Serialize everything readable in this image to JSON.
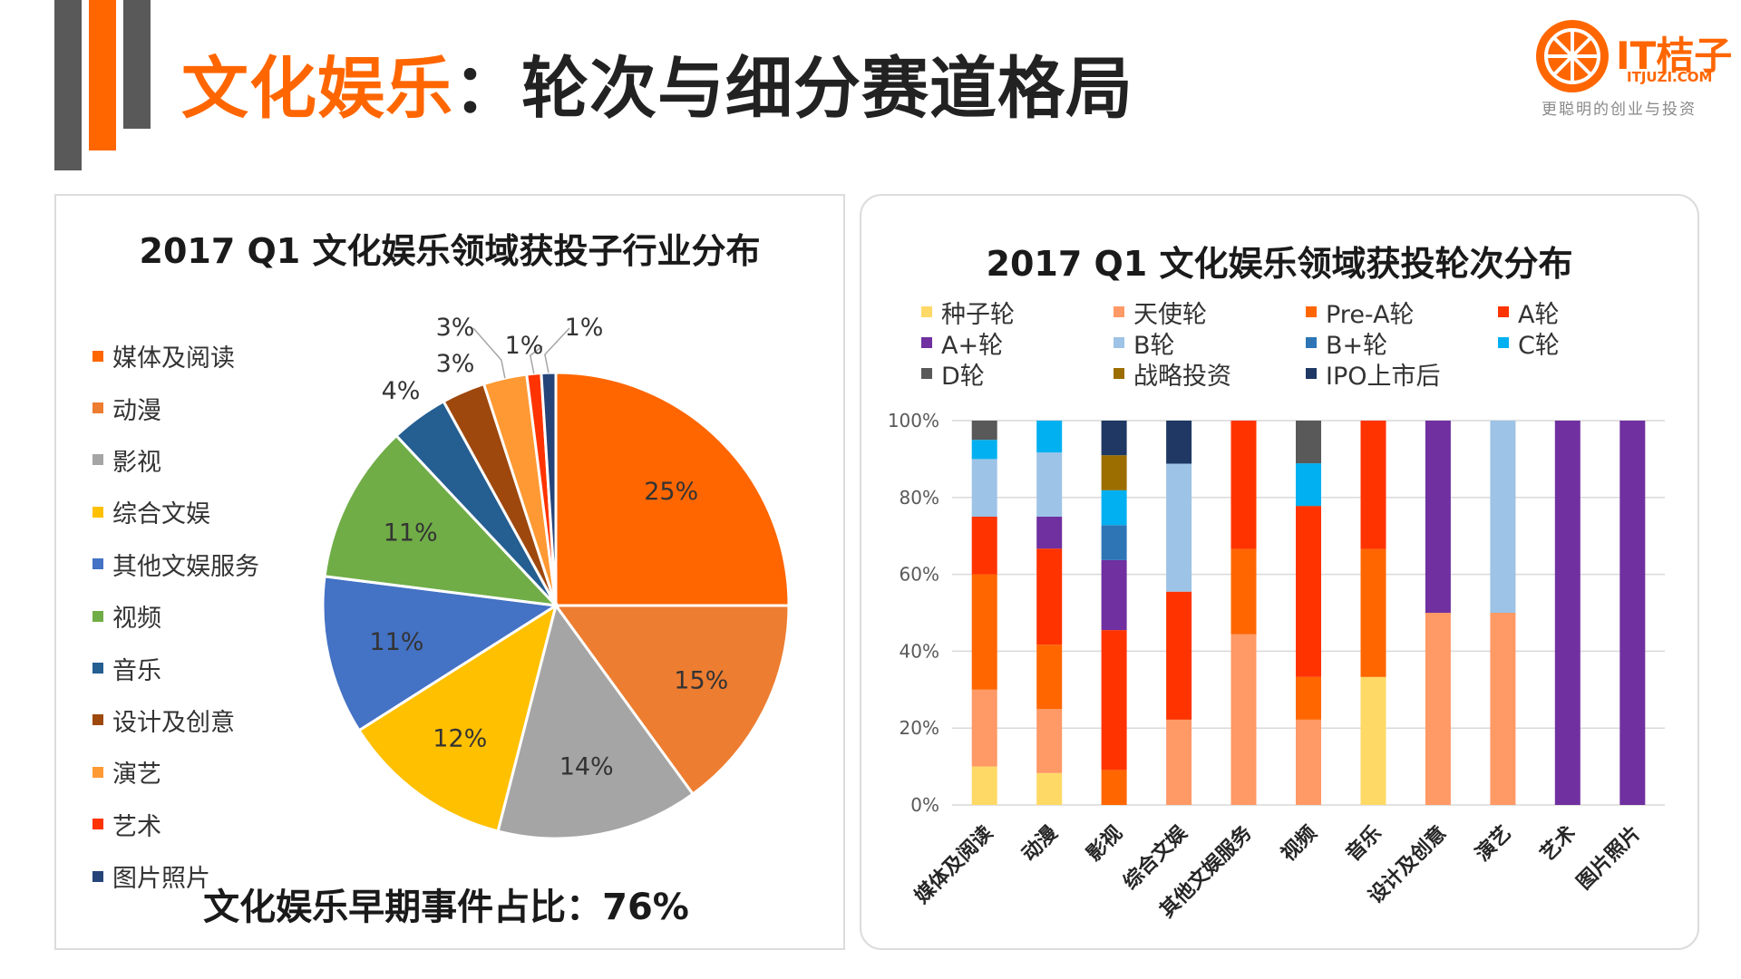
{
  "header": {
    "title_accent": "文化娱乐",
    "title_rest": "：轮次与细分赛道格局"
  },
  "logo": {
    "name": "IT桔子",
    "url": "ITJUZI.COM",
    "slogan": "更聪明的创业与投资"
  },
  "colors": {
    "accent": "#ff6600",
    "deco_gray": "#595959",
    "deco_orange": "#ff6600"
  },
  "chart_data": [
    {
      "type": "pie",
      "title": "2017 Q1 文化娱乐领域获投子行业分布",
      "categories": [
        "媒体及阅读",
        "动漫",
        "影视",
        "综合文娱",
        "其他文娱服务",
        "视频",
        "音乐",
        "设计及创意",
        "演艺",
        "艺术",
        "图片照片"
      ],
      "values": [
        25,
        15,
        14,
        12,
        11,
        11,
        4,
        3,
        3,
        1,
        1
      ],
      "labels": [
        "25%",
        "15%",
        "14%",
        "12%",
        "11%",
        "11%",
        "4%",
        "3%",
        "3%",
        "1%",
        "1%"
      ],
      "colors": [
        "#ff6600",
        "#ed7d31",
        "#a5a5a5",
        "#ffc000",
        "#4472c4",
        "#70ad47",
        "#255e91",
        "#9e480e",
        "#ff9933",
        "#ff3300",
        "#264478"
      ],
      "legend_position": "left"
    },
    {
      "type": "bar",
      "stacked": true,
      "title": "2017 Q1 文化娱乐领域获投轮次分布",
      "categories": [
        "媒体及阅读",
        "动漫",
        "影视",
        "综合文娱",
        "其他文娱服务",
        "视频",
        "音乐",
        "设计及创意",
        "演艺",
        "艺术",
        "图片照片"
      ],
      "ylim": [
        0,
        100
      ],
      "yticks": [
        "0%",
        "20%",
        "40%",
        "60%",
        "80%",
        "100%"
      ],
      "legend_position": "top",
      "series": [
        {
          "name": "种子轮",
          "color": "#ffd966",
          "values": [
            10,
            8.3,
            0,
            0,
            0,
            0,
            33.3,
            0,
            0,
            0,
            0
          ]
        },
        {
          "name": "天使轮",
          "color": "#ff9966",
          "values": [
            20,
            16.7,
            0,
            22.2,
            44.4,
            22.2,
            0,
            50,
            50,
            0,
            0
          ]
        },
        {
          "name": "Pre-A轮",
          "color": "#ff6600",
          "values": [
            30,
            16.7,
            9.1,
            0,
            22.2,
            11.1,
            33.3,
            0,
            0,
            0,
            0
          ]
        },
        {
          "name": "A轮",
          "color": "#ff3300",
          "values": [
            15,
            25,
            36.4,
            33.3,
            33.4,
            44.5,
            33.4,
            0,
            0,
            0,
            0
          ]
        },
        {
          "name": "A+轮",
          "color": "#7030a0",
          "values": [
            0,
            8.3,
            18.2,
            0,
            0,
            0,
            0,
            50,
            0,
            100,
            100
          ]
        },
        {
          "name": "B轮",
          "color": "#9dc3e6",
          "values": [
            15,
            16.7,
            0,
            33.3,
            0,
            0,
            0,
            0,
            50,
            0,
            0
          ]
        },
        {
          "name": "B+轮",
          "color": "#2e75b6",
          "values": [
            0,
            0,
            9.1,
            0,
            0,
            0,
            0,
            0,
            0,
            0,
            0
          ]
        },
        {
          "name": "C轮",
          "color": "#00b0f0",
          "values": [
            5,
            8.3,
            9.1,
            0,
            0,
            11.1,
            0,
            0,
            0,
            0,
            0
          ]
        },
        {
          "name": "D轮",
          "color": "#595959",
          "values": [
            5,
            0,
            0,
            0,
            0,
            11.1,
            0,
            0,
            0,
            0,
            0
          ]
        },
        {
          "name": "战略投资",
          "color": "#9c6e00",
          "values": [
            0,
            0,
            9.1,
            0,
            0,
            0,
            0,
            0,
            0,
            0,
            0
          ]
        },
        {
          "name": "IPO上市后",
          "color": "#1f3864",
          "values": [
            0,
            0,
            9.0,
            11.2,
            0,
            0,
            0,
            0,
            0,
            0,
            0
          ]
        }
      ]
    }
  ],
  "footer_note": "文化娱乐早期事件占比：76%"
}
